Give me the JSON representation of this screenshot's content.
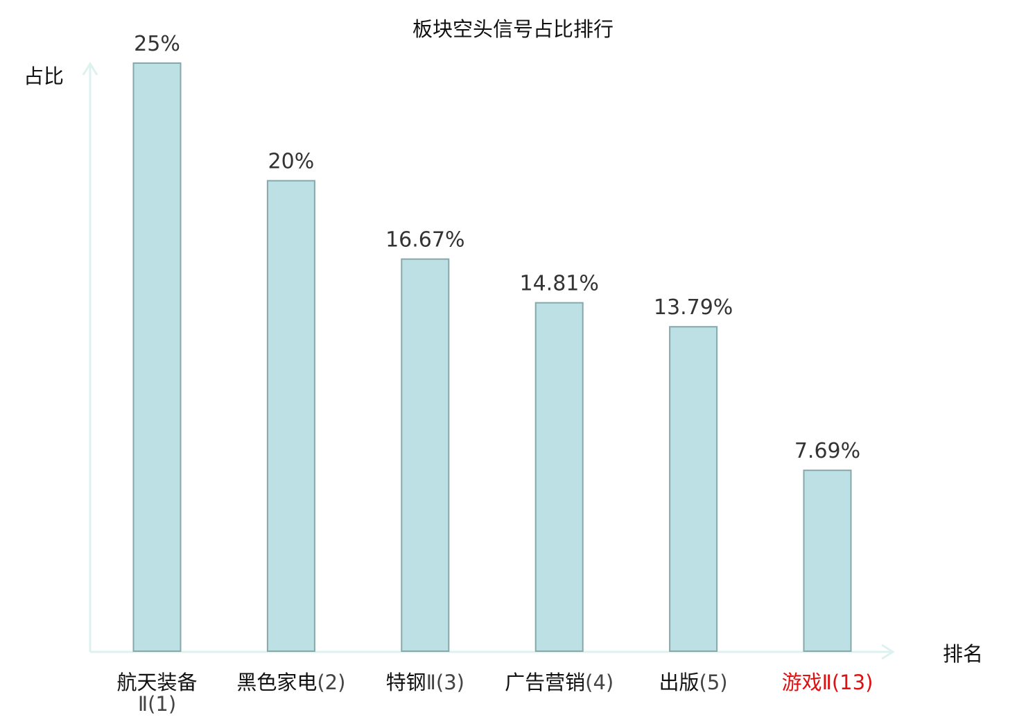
{
  "chart_data": {
    "type": "bar",
    "title": "板块空头信号占比排行",
    "xlabel": "排名",
    "ylabel": "占比",
    "ylim": [
      0,
      25
    ],
    "grid": false,
    "legend": "none",
    "value_unit": "%",
    "categories": [
      {
        "name_lines": [
          "航天装备"
        ],
        "rank_suffix": "Ⅱ(1)",
        "suffix_on_new_line": true,
        "highlight": false
      },
      {
        "name_lines": [
          "黑色家电"
        ],
        "rank_suffix": "(2)",
        "suffix_on_new_line": false,
        "highlight": false
      },
      {
        "name_lines": [
          "特钢"
        ],
        "rank_suffix": "Ⅱ(3)",
        "suffix_on_new_line": false,
        "highlight": false
      },
      {
        "name_lines": [
          "广告营销"
        ],
        "rank_suffix": "(4)",
        "suffix_on_new_line": false,
        "highlight": false
      },
      {
        "name_lines": [
          "出版"
        ],
        "rank_suffix": "(5)",
        "suffix_on_new_line": false,
        "highlight": false
      },
      {
        "name_lines": [
          "游戏"
        ],
        "rank_suffix": "Ⅱ(13)",
        "suffix_on_new_line": false,
        "highlight": true
      }
    ],
    "values": [
      25,
      20,
      16.67,
      14.81,
      13.79,
      7.69
    ],
    "value_labels": [
      "25%",
      "20%",
      "16.67%",
      "14.81%",
      "13.79%",
      "7.69%"
    ]
  },
  "colors": {
    "bar_fill": "#bce0e3",
    "bar_stroke": "#86a8ab",
    "axis": "#ddf1ef",
    "text": "#111111",
    "value_text": "#333333",
    "rank_text": "#444444",
    "highlight": "#dd1111"
  }
}
